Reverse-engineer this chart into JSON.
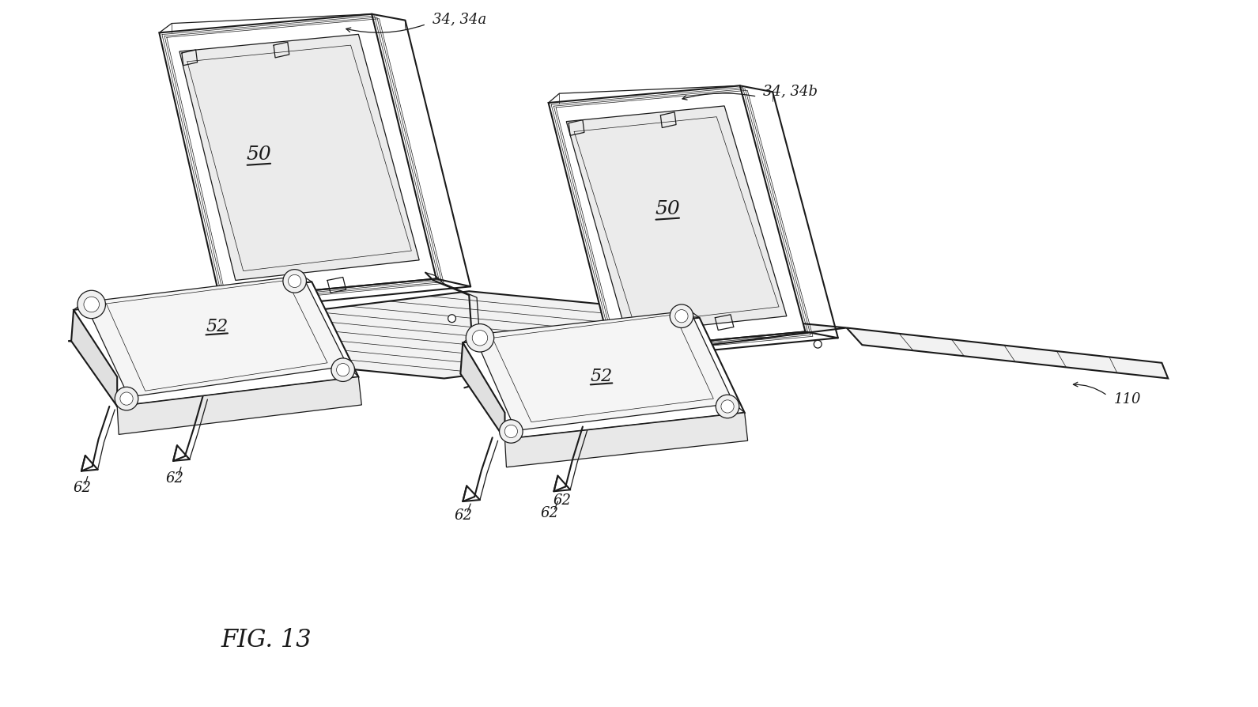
{
  "title": "FIG. 13",
  "bg_color": "#ffffff",
  "line_color": "#1a1a1a",
  "lw_main": 1.5,
  "lw_detail": 0.9,
  "lw_thin": 0.5,
  "fig_width": 15.91,
  "fig_height": 8.95,
  "dpi": 100,
  "labels": {
    "34_34a": "34, 34a",
    "34_34b": "34, 34b",
    "50": "50",
    "52": "52",
    "62": "62",
    "110": "110"
  },
  "annotation_fontsize": 13,
  "label_fontsize": 18,
  "title_fontsize": 22
}
